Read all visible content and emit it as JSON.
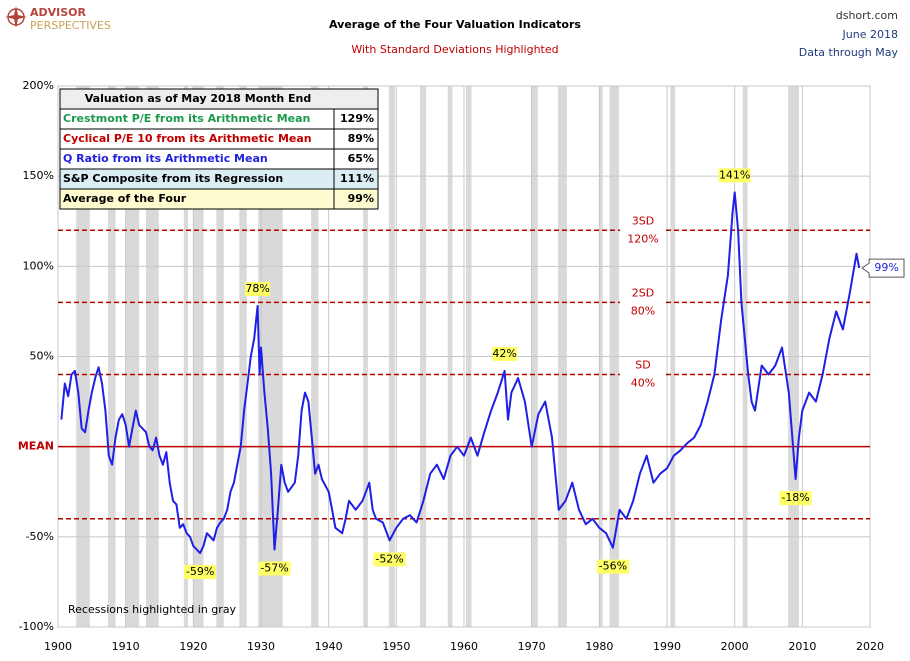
{
  "chart_data": {
    "type": "line",
    "title": "Average of the Four Valuation Indicators",
    "subtitle": "With Standard Deviations Highlighted",
    "logo": [
      "ADVISOR",
      "PERSPECTIVES"
    ],
    "source": [
      "dshort.com",
      "June 2018",
      "Data through May"
    ],
    "note": "Recessions highlighted in gray",
    "xlim": [
      1900,
      2020
    ],
    "xticks": [
      1900,
      1910,
      1920,
      1930,
      1940,
      1950,
      1960,
      1970,
      1980,
      1990,
      2000,
      2010,
      2020
    ],
    "ylim": [
      -100,
      200
    ],
    "yticks": [
      {
        "value": -100,
        "label": "-100%"
      },
      {
        "value": -50,
        "label": "-50%"
      },
      {
        "value": 0,
        "label": "0%"
      },
      {
        "value": 50,
        "label": "50%"
      },
      {
        "value": 100,
        "label": "100%"
      },
      {
        "value": 150,
        "label": "150%"
      },
      {
        "value": 200,
        "label": "200%"
      }
    ],
    "grid": true,
    "series": [
      {
        "name": "Average of the Four",
        "color": "#1f1fe6",
        "x": [
          1900.5,
          1901,
          1901.5,
          1902,
          1902.5,
          1903,
          1903.5,
          1904,
          1904.5,
          1905,
          1905.5,
          1906,
          1906.5,
          1907,
          1907.5,
          1908,
          1908.5,
          1909,
          1909.5,
          1910,
          1910.5,
          1911,
          1911.5,
          1912,
          1913,
          1913.5,
          1914,
          1914.5,
          1915,
          1915.5,
          1916,
          1916.5,
          1917,
          1917.5,
          1918,
          1918.5,
          1919,
          1919.5,
          1920,
          1920.5,
          1921,
          1921.5,
          1922,
          1922.5,
          1923,
          1923.5,
          1924,
          1924.5,
          1925,
          1925.5,
          1926,
          1926.5,
          1927,
          1927.5,
          1928,
          1928.5,
          1929,
          1929.5,
          1929.8,
          1930,
          1930.5,
          1931,
          1931.5,
          1932,
          1932.5,
          1933,
          1933.5,
          1934,
          1935,
          1935.5,
          1936,
          1936.5,
          1937,
          1937.5,
          1938,
          1938.5,
          1939,
          1940,
          1940.5,
          1941,
          1942,
          1942.5,
          1943,
          1944,
          1945,
          1946,
          1946.5,
          1947,
          1948,
          1949,
          1950,
          1951,
          1952,
          1953,
          1954,
          1955,
          1956,
          1957,
          1958,
          1959,
          1960,
          1961,
          1962,
          1963,
          1964,
          1965,
          1966,
          1966.5,
          1967,
          1968,
          1969,
          1970,
          1971,
          1972,
          1973,
          1974,
          1975,
          1976,
          1977,
          1978,
          1979,
          1980,
          1981,
          1982,
          1983,
          1984,
          1985,
          1986,
          1987,
          1988,
          1989,
          1990,
          1991,
          1992,
          1993,
          1994,
          1995,
          1996,
          1997,
          1998,
          1999,
          1999.7,
          2000,
          2000.5,
          2001,
          2002,
          2002.5,
          2003,
          2004,
          2005,
          2006,
          2007,
          2008,
          2009,
          2009.5,
          2010,
          2011,
          2012,
          2013,
          2014,
          2015,
          2016,
          2017,
          2018,
          2018.4
        ],
        "values": [
          15,
          35,
          28,
          40,
          42,
          30,
          10,
          8,
          20,
          30,
          38,
          44,
          35,
          20,
          -5,
          -10,
          5,
          15,
          18,
          12,
          0,
          10,
          20,
          12,
          8,
          0,
          -2,
          5,
          -5,
          -10,
          -3,
          -20,
          -30,
          -32,
          -45,
          -43,
          -48,
          -50,
          -55,
          -57,
          -59,
          -55,
          -48,
          -50,
          -52,
          -45,
          -42,
          -40,
          -35,
          -25,
          -20,
          -10,
          0,
          20,
          35,
          50,
          60,
          78,
          40,
          55,
          30,
          10,
          -15,
          -57,
          -35,
          -10,
          -20,
          -25,
          -20,
          -5,
          20,
          30,
          25,
          5,
          -15,
          -10,
          -18,
          -25,
          -35,
          -45,
          -48,
          -40,
          -30,
          -35,
          -30,
          -20,
          -35,
          -40,
          -42,
          -52,
          -45,
          -40,
          -38,
          -42,
          -30,
          -15,
          -10,
          -18,
          -5,
          0,
          -5,
          5,
          -5,
          8,
          20,
          30,
          42,
          15,
          30,
          38,
          25,
          0,
          18,
          25,
          5,
          -35,
          -30,
          -20,
          -35,
          -43,
          -40,
          -45,
          -48,
          -56,
          -35,
          -40,
          -30,
          -15,
          -5,
          -20,
          -15,
          -12,
          -5,
          -2,
          2,
          5,
          12,
          25,
          40,
          70,
          95,
          130,
          141,
          120,
          80,
          40,
          25,
          20,
          45,
          40,
          45,
          55,
          30,
          -18,
          5,
          20,
          30,
          25,
          40,
          60,
          75,
          65,
          85,
          107,
          99
        ]
      }
    ],
    "recessions": [
      [
        1902.7,
        1904.7
      ],
      [
        1907.4,
        1908.5
      ],
      [
        1910,
        1912
      ],
      [
        1913,
        1914.9
      ],
      [
        1918.6,
        1919.2
      ],
      [
        1920,
        1921.5
      ],
      [
        1923.4,
        1924.5
      ],
      [
        1926.8,
        1927.9
      ],
      [
        1929.6,
        1933.2
      ],
      [
        1937.4,
        1938.5
      ],
      [
        1945.1,
        1945.8
      ],
      [
        1948.9,
        1949.8
      ],
      [
        1953.5,
        1954.4
      ],
      [
        1957.6,
        1958.3
      ],
      [
        1960.3,
        1961.1
      ],
      [
        1969.9,
        1970.9
      ],
      [
        1973.9,
        1975.2
      ],
      [
        1980,
        1980.5
      ],
      [
        1981.5,
        1982.9
      ],
      [
        1990.5,
        1991.2
      ],
      [
        2001.2,
        2001.9
      ],
      [
        2007.9,
        2009.5
      ]
    ],
    "mean_line": {
      "value": 0,
      "label": "MEAN"
    },
    "reference_lines": [
      {
        "value": 120,
        "label": "3SD",
        "value_label": "120%"
      },
      {
        "value": 80,
        "label": "2SD",
        "value_label": "80%"
      },
      {
        "value": 40,
        "label": "SD",
        "value_label": "40%"
      },
      {
        "value": -40
      }
    ],
    "annotations": [
      {
        "x": 1929.5,
        "value": 78,
        "label": "78%"
      },
      {
        "x": 1921,
        "value": -59,
        "label": "-59%"
      },
      {
        "x": 1932,
        "value": -57,
        "label": "-57%"
      },
      {
        "x": 1949,
        "value": -52,
        "label": "-52%"
      },
      {
        "x": 1966,
        "value": 42,
        "label": "42%"
      },
      {
        "x": 1982,
        "value": -56,
        "label": "-56%"
      },
      {
        "x": 2000,
        "value": 141,
        "label": "141%"
      },
      {
        "x": 2009,
        "value": -18,
        "label": "-18%"
      }
    ],
    "last_value": {
      "x": 2018.4,
      "value": 99,
      "label": "99%"
    },
    "summary_table": {
      "header": "Valuation as of May 2018  Month End",
      "rows": [
        {
          "label": "Crestmont P/E from its Arithmetic Mean",
          "value": "129%",
          "color": "#1a9a4a",
          "background": "#ffffff"
        },
        {
          "label": "Cyclical P/E 10 from its Arithmetic Mean",
          "value": "89%",
          "color": "#c00000",
          "background": "#ffffff"
        },
        {
          "label": "Q Ratio from its Arithmetic Mean",
          "value": "65%",
          "color": "#2222dd",
          "background": "#ffffff"
        },
        {
          "label": "S&P Composite from its Regression",
          "value": "111%",
          "color": "#000000",
          "background": "#dbeef4"
        },
        {
          "label": "Average of the Four",
          "value": "99%",
          "color": "#000000",
          "background": "#fefbd0"
        }
      ]
    }
  }
}
